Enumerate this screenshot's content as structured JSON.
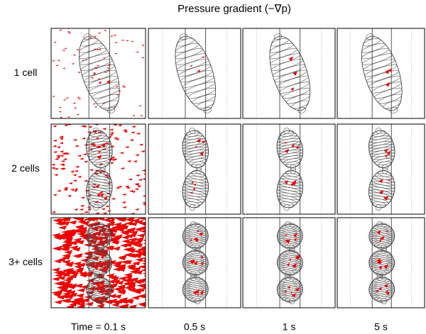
{
  "title": "Pressure gradient (−∇p)",
  "row_labels": [
    "1 cell",
    "2 cells",
    "3+ cells"
  ],
  "column_labels": [
    "Time = 0.1 s",
    "0.5 s",
    "1 s",
    "5 s"
  ]
}
